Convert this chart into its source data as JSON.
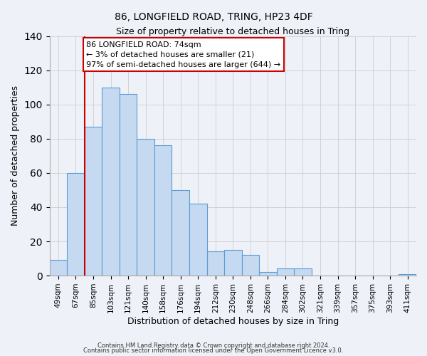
{
  "title": "86, LONGFIELD ROAD, TRING, HP23 4DF",
  "subtitle": "Size of property relative to detached houses in Tring",
  "xlabel": "Distribution of detached houses by size in Tring",
  "ylabel": "Number of detached properties",
  "bin_labels": [
    "49sqm",
    "67sqm",
    "85sqm",
    "103sqm",
    "121sqm",
    "140sqm",
    "158sqm",
    "176sqm",
    "194sqm",
    "212sqm",
    "230sqm",
    "248sqm",
    "266sqm",
    "284sqm",
    "302sqm",
    "321sqm",
    "339sqm",
    "357sqm",
    "375sqm",
    "393sqm",
    "411sqm"
  ],
  "bar_values": [
    9,
    60,
    87,
    110,
    106,
    80,
    76,
    50,
    42,
    14,
    15,
    12,
    2,
    4,
    4,
    0,
    0,
    0,
    0,
    0,
    1
  ],
  "bar_color": "#c5d9f0",
  "bar_edge_color": "#5b9bd5",
  "ylim": [
    0,
    140
  ],
  "yticks": [
    0,
    20,
    40,
    60,
    80,
    100,
    120,
    140
  ],
  "vline_color": "#cc0000",
  "annotation_text": "86 LONGFIELD ROAD: 74sqm\n← 3% of detached houses are smaller (21)\n97% of semi-detached houses are larger (644) →",
  "annotation_box_color": "#ffffff",
  "annotation_box_edge": "#cc0000",
  "footer1": "Contains HM Land Registry data © Crown copyright and database right 2024.",
  "footer2": "Contains public sector information licensed under the Open Government Licence v3.0.",
  "background_color": "#eef2f8",
  "plot_background": "#eef2f8"
}
